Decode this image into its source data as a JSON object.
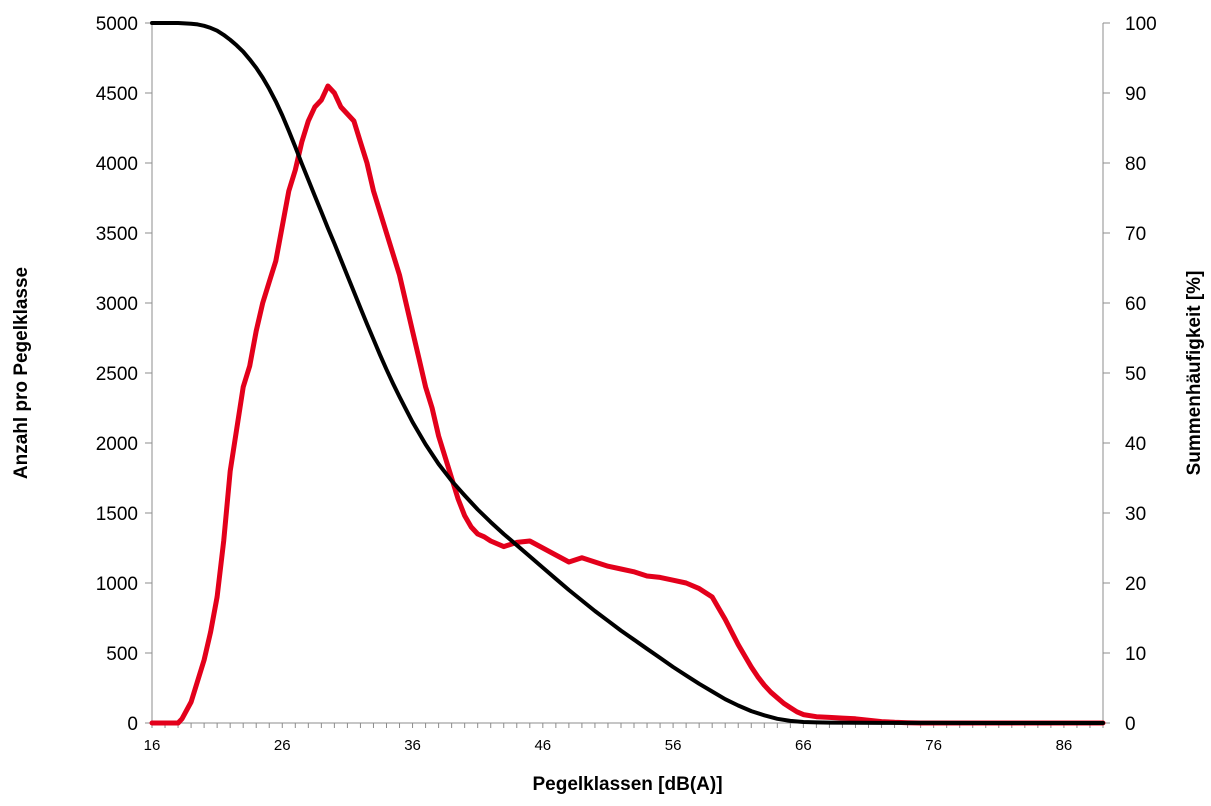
{
  "chart_data": {
    "type": "line",
    "title": "",
    "xlabel": "Pegelklassen [dB(A)]",
    "ylabel_left": "Anzahl pro Pegelklasse",
    "ylabel_right": "Summenhäufigkeit [%]",
    "xlim": [
      16,
      89
    ],
    "ylim_left": [
      0,
      5000
    ],
    "ylim_right": [
      0,
      100
    ],
    "x_ticks": [
      "16",
      "26",
      "36",
      "46",
      "56",
      "66",
      "76",
      "86"
    ],
    "y_ticks_left": [
      "0",
      "500",
      "1000",
      "1500",
      "2000",
      "2500",
      "3000",
      "3500",
      "4000",
      "4500",
      "5000"
    ],
    "y_ticks_right": [
      "0",
      "10",
      "20",
      "30",
      "40",
      "50",
      "60",
      "70",
      "80",
      "90",
      "100"
    ],
    "grid": false,
    "legend": "none",
    "series": [
      {
        "axis": "left",
        "color": "#e3001b",
        "x": [
          16,
          17,
          18,
          18.3,
          19,
          19.5,
          20,
          20.5,
          21,
          21.5,
          22,
          22.5,
          23,
          23.5,
          24,
          24.5,
          25,
          25.5,
          26,
          26.5,
          27,
          27.5,
          28,
          28.5,
          29,
          29.5,
          30,
          30.5,
          31,
          31.5,
          32,
          32.5,
          33,
          33.5,
          34,
          34.5,
          35,
          35.5,
          36,
          36.5,
          37,
          37.5,
          38,
          38.5,
          39,
          39.5,
          40,
          40.5,
          41,
          41.5,
          42,
          43,
          44,
          45,
          46,
          47,
          48,
          49,
          50,
          51,
          52,
          53,
          54,
          55,
          56,
          57,
          58,
          59,
          59.5,
          60,
          60.5,
          61,
          61.5,
          62,
          62.5,
          63,
          63.5,
          64,
          64.5,
          65,
          65.5,
          66,
          67,
          68,
          69,
          70,
          71,
          72,
          73,
          74,
          75,
          76,
          80,
          85,
          89
        ],
        "values": [
          0,
          0,
          0,
          30,
          150,
          300,
          450,
          650,
          900,
          1300,
          1800,
          2100,
          2400,
          2550,
          2800,
          3000,
          3150,
          3300,
          3550,
          3800,
          3950,
          4150,
          4300,
          4400,
          4450,
          4550,
          4500,
          4400,
          4350,
          4300,
          4150,
          4000,
          3800,
          3650,
          3500,
          3350,
          3200,
          3000,
          2800,
          2600,
          2400,
          2250,
          2050,
          1900,
          1750,
          1600,
          1480,
          1400,
          1350,
          1330,
          1300,
          1260,
          1290,
          1300,
          1250,
          1200,
          1150,
          1180,
          1150,
          1120,
          1100,
          1080,
          1050,
          1040,
          1020,
          1000,
          960,
          900,
          820,
          740,
          650,
          560,
          480,
          400,
          330,
          270,
          220,
          180,
          140,
          110,
          80,
          60,
          45,
          40,
          35,
          30,
          20,
          10,
          5,
          2,
          0,
          0,
          0,
          0,
          0
        ]
      },
      {
        "axis": "right",
        "color": "#000000",
        "x": [
          16,
          17,
          18,
          19,
          19.5,
          20,
          20.5,
          21,
          21.5,
          22,
          22.5,
          23,
          23.5,
          24,
          24.5,
          25,
          25.5,
          26,
          26.5,
          27,
          27.5,
          28,
          28.5,
          29,
          29.5,
          30,
          30.5,
          31,
          31.5,
          32,
          32.5,
          33,
          33.5,
          34,
          34.5,
          35,
          35.5,
          36,
          37,
          38,
          39,
          40,
          41,
          42,
          43,
          44,
          45,
          46,
          47,
          48,
          49,
          50,
          51,
          52,
          53,
          54,
          55,
          56,
          57,
          58,
          59,
          60,
          61,
          62,
          63,
          64,
          65,
          66,
          67,
          68,
          70,
          72,
          76,
          80,
          89
        ],
        "values": [
          100,
          100,
          100,
          99.9,
          99.8,
          99.6,
          99.3,
          98.9,
          98.3,
          97.6,
          96.8,
          95.9,
          94.8,
          93.6,
          92.2,
          90.6,
          88.8,
          86.8,
          84.6,
          82.3,
          79.9,
          77.6,
          75.3,
          73.0,
          70.7,
          68.5,
          66.2,
          63.9,
          61.6,
          59.3,
          57.0,
          54.8,
          52.6,
          50.5,
          48.5,
          46.6,
          44.8,
          43.0,
          39.8,
          37.0,
          34.6,
          32.5,
          30.5,
          28.7,
          27.0,
          25.4,
          23.8,
          22.2,
          20.6,
          19.0,
          17.5,
          16.0,
          14.6,
          13.2,
          11.9,
          10.6,
          9.3,
          8.0,
          6.8,
          5.6,
          4.5,
          3.4,
          2.5,
          1.7,
          1.1,
          0.6,
          0.3,
          0.15,
          0.08,
          0.05,
          0.03,
          0.02,
          0.01,
          0,
          0
        ]
      }
    ]
  }
}
